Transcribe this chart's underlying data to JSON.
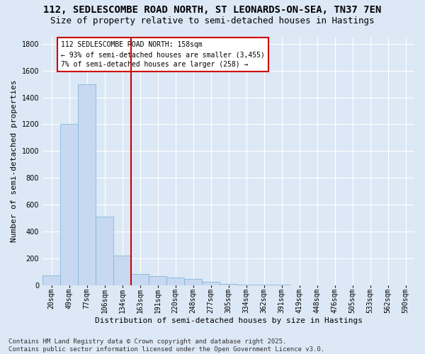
{
  "title_line1": "112, SEDLESCOMBE ROAD NORTH, ST LEONARDS-ON-SEA, TN37 7EN",
  "title_line2": "Size of property relative to semi-detached houses in Hastings",
  "xlabel": "Distribution of semi-detached houses by size in Hastings",
  "ylabel": "Number of semi-detached properties",
  "categories": [
    "20sqm",
    "49sqm",
    "77sqm",
    "106sqm",
    "134sqm",
    "163sqm",
    "191sqm",
    "220sqm",
    "248sqm",
    "277sqm",
    "305sqm",
    "334sqm",
    "362sqm",
    "391sqm",
    "419sqm",
    "448sqm",
    "476sqm",
    "505sqm",
    "533sqm",
    "562sqm",
    "590sqm"
  ],
  "values": [
    70,
    1200,
    1500,
    510,
    220,
    80,
    65,
    55,
    45,
    25,
    10,
    5,
    2,
    1,
    0,
    0,
    0,
    0,
    0,
    0,
    0
  ],
  "bar_color": "#c6d9f0",
  "bar_edge_color": "#7bafd4",
  "vline_x_index": 5,
  "vline_color": "#cc0000",
  "vline_label_line1": "112 SEDLESCOMBE ROAD NORTH: 158sqm",
  "vline_label_line2": "← 93% of semi-detached houses are smaller (3,455)",
  "vline_label_line3": "7% of semi-detached houses are larger (258) →",
  "annotation_box_color": "#cc0000",
  "ylim": [
    0,
    1850
  ],
  "yticks": [
    0,
    200,
    400,
    600,
    800,
    1000,
    1200,
    1400,
    1600,
    1800
  ],
  "footnote_line1": "Contains HM Land Registry data © Crown copyright and database right 2025.",
  "footnote_line2": "Contains public sector information licensed under the Open Government Licence v3.0.",
  "bg_color": "#dce8f5",
  "plot_bg_color": "#dce8f5",
  "title_fontsize": 10,
  "subtitle_fontsize": 9,
  "axis_label_fontsize": 8,
  "tick_fontsize": 7,
  "annotation_fontsize": 7,
  "footnote_fontsize": 6.5
}
